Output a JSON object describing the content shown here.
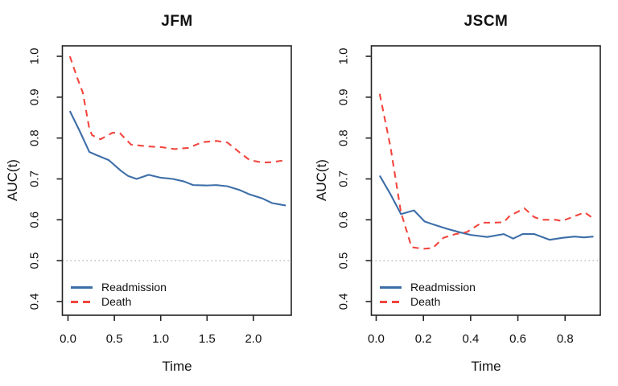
{
  "figure": {
    "colors": {
      "readmission": "#3d6ea8",
      "death": "#f2463e",
      "reference_line": "#a9a9a9",
      "axis": "#222222",
      "text": "#111111",
      "background": "#ffffff"
    },
    "legend": {
      "items": [
        {
          "label": "Readmission",
          "line_style": "solid"
        },
        {
          "label": "Death",
          "line_style": "dashed"
        }
      ]
    }
  },
  "chart_data": [
    {
      "type": "line",
      "title": "JFM",
      "xlabel": "Time",
      "ylabel": "AUC(t)",
      "xlim": [
        -0.061,
        2.409
      ],
      "ylim": [
        0.3665,
        1.0256
      ],
      "xticks": [
        0.0,
        0.5,
        1.0,
        1.5,
        2.0
      ],
      "yticks": [
        0.4,
        0.5,
        0.6,
        0.7,
        0.8,
        0.9,
        1.0
      ],
      "grid": false,
      "legend_position": "bottom-left",
      "reference_line_y": 0.5,
      "series": [
        {
          "name": "Readmission",
          "style": "solid",
          "color": "#3d6ea8",
          "x": [
            0.02,
            0.12,
            0.23,
            0.3,
            0.44,
            0.57,
            0.65,
            0.74,
            0.87,
            1.0,
            1.13,
            1.25,
            1.35,
            1.5,
            1.6,
            1.72,
            1.85,
            1.96,
            2.1,
            2.2,
            2.35
          ],
          "y": [
            0.866,
            0.82,
            0.766,
            0.759,
            0.746,
            0.72,
            0.707,
            0.7,
            0.71,
            0.703,
            0.7,
            0.694,
            0.685,
            0.684,
            0.685,
            0.682,
            0.673,
            0.662,
            0.652,
            0.641,
            0.635
          ]
        },
        {
          "name": "Death",
          "style": "dashed",
          "color": "#f2463e",
          "x": [
            0.02,
            0.1,
            0.16,
            0.23,
            0.26,
            0.35,
            0.48,
            0.56,
            0.68,
            0.8,
            0.9,
            1.0,
            1.15,
            1.3,
            1.45,
            1.6,
            1.72,
            1.85,
            1.96,
            2.1,
            2.2,
            2.35
          ],
          "y": [
            1.0,
            0.947,
            0.911,
            0.823,
            0.807,
            0.797,
            0.813,
            0.812,
            0.784,
            0.781,
            0.779,
            0.778,
            0.773,
            0.776,
            0.79,
            0.793,
            0.789,
            0.765,
            0.746,
            0.74,
            0.741,
            0.746
          ]
        }
      ]
    },
    {
      "type": "line",
      "title": "JSCM",
      "xlabel": "Time",
      "ylabel": "AUC(t)",
      "xlim": [
        -0.0204,
        0.949
      ],
      "ylim": [
        0.3665,
        1.0256
      ],
      "xticks": [
        0.0,
        0.2,
        0.4,
        0.6,
        0.8
      ],
      "yticks": [
        0.4,
        0.5,
        0.6,
        0.7,
        0.8,
        0.9,
        1.0
      ],
      "grid": false,
      "legend_position": "bottom-left",
      "reference_line_y": 0.5,
      "series": [
        {
          "name": "Readmission",
          "style": "solid",
          "color": "#3d6ea8",
          "x": [
            0.015,
            0.06,
            0.105,
            0.16,
            0.205,
            0.25,
            0.3,
            0.35,
            0.4,
            0.47,
            0.54,
            0.58,
            0.62,
            0.67,
            0.735,
            0.79,
            0.84,
            0.88,
            0.92
          ],
          "y": [
            0.708,
            0.663,
            0.614,
            0.623,
            0.596,
            0.587,
            0.578,
            0.57,
            0.563,
            0.558,
            0.565,
            0.554,
            0.565,
            0.565,
            0.551,
            0.556,
            0.559,
            0.557,
            0.559
          ]
        },
        {
          "name": "Death",
          "style": "dashed",
          "color": "#f2463e",
          "x": [
            0.015,
            0.06,
            0.105,
            0.15,
            0.2,
            0.24,
            0.285,
            0.335,
            0.384,
            0.447,
            0.5,
            0.54,
            0.566,
            0.628,
            0.668,
            0.7,
            0.76,
            0.787,
            0.845,
            0.883,
            0.92
          ],
          "y": [
            0.908,
            0.78,
            0.618,
            0.533,
            0.529,
            0.531,
            0.556,
            0.565,
            0.57,
            0.593,
            0.593,
            0.594,
            0.61,
            0.628,
            0.607,
            0.6,
            0.6,
            0.597,
            0.61,
            0.618,
            0.603
          ]
        }
      ]
    }
  ]
}
